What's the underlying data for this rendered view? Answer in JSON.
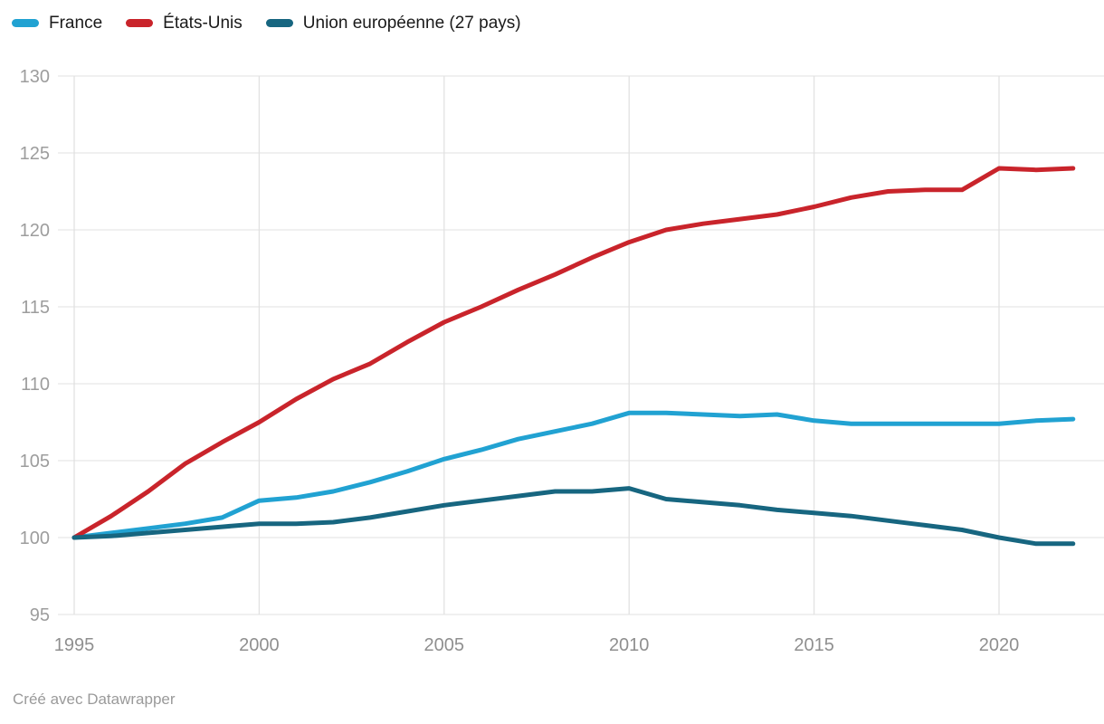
{
  "footer": {
    "attribution": "Créé avec Datawrapper"
  },
  "chart_data": {
    "type": "line",
    "title": "",
    "xlabel": "",
    "ylabel": "",
    "x": [
      1995,
      1996,
      1997,
      1998,
      1999,
      2000,
      2001,
      2002,
      2003,
      2004,
      2005,
      2006,
      2007,
      2008,
      2009,
      2010,
      2011,
      2012,
      2013,
      2014,
      2015,
      2016,
      2017,
      2018,
      2019,
      2020,
      2021,
      2022
    ],
    "series": [
      {
        "name": "France",
        "color": "#21a2d2",
        "values": [
          100,
          100.3,
          100.6,
          100.9,
          101.3,
          102.4,
          102.6,
          103.0,
          103.6,
          104.3,
          105.1,
          105.7,
          106.4,
          106.9,
          107.4,
          108.1,
          108.1,
          108.0,
          107.9,
          108.0,
          107.6,
          107.4,
          107.4,
          107.4,
          107.4,
          107.4,
          107.6,
          107.7
        ]
      },
      {
        "name": "États-Unis",
        "color": "#c9242b",
        "values": [
          100,
          101.4,
          103.0,
          104.8,
          106.2,
          107.5,
          109.0,
          110.3,
          111.3,
          112.7,
          114.0,
          115.0,
          116.1,
          117.1,
          118.2,
          119.2,
          120.0,
          120.4,
          120.7,
          121.0,
          121.5,
          122.1,
          122.5,
          122.6,
          122.6,
          124.0,
          123.9,
          124.0
        ]
      },
      {
        "name": "Union européenne (27 pays)",
        "color": "#176680",
        "values": [
          100,
          100.1,
          100.3,
          100.5,
          100.7,
          100.9,
          100.9,
          101.0,
          101.3,
          101.7,
          102.1,
          102.4,
          102.7,
          103.0,
          103.0,
          103.2,
          102.5,
          102.3,
          102.1,
          101.8,
          101.6,
          101.4,
          101.1,
          100.8,
          100.5,
          100.0,
          99.6,
          99.6
        ]
      }
    ],
    "xticks": [
      1995,
      2000,
      2005,
      2010,
      2015,
      2020
    ],
    "yticks": [
      95,
      100,
      105,
      110,
      115,
      120,
      125,
      130
    ],
    "xlim": [
      1995,
      2022
    ],
    "ylim": [
      95,
      130
    ],
    "grid": true,
    "legend_position": "top-left",
    "grid_color": "#e6e6e6"
  }
}
